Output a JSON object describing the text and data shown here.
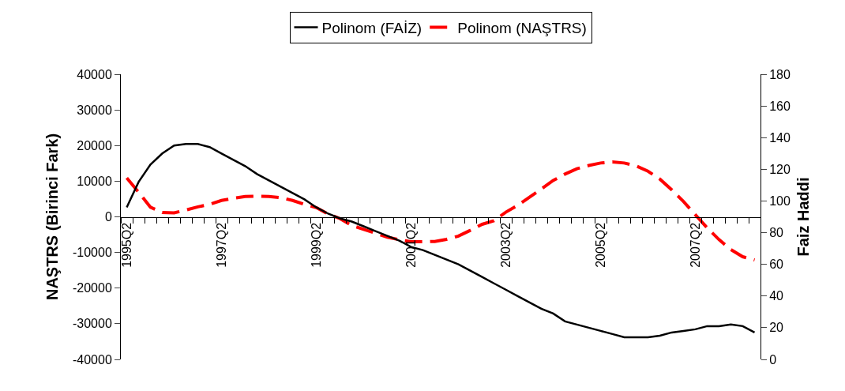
{
  "chart_data": {
    "type": "line",
    "categories": [
      "1995Q2",
      null,
      null,
      null,
      null,
      null,
      null,
      null,
      "1997Q2",
      null,
      null,
      null,
      null,
      null,
      null,
      null,
      "1999Q2",
      null,
      null,
      null,
      null,
      null,
      null,
      null,
      "2001Q2",
      null,
      null,
      null,
      null,
      null,
      null,
      null,
      "2003Q2",
      null,
      null,
      null,
      null,
      null,
      null,
      null,
      "2005Q2",
      null,
      null,
      null,
      null,
      null,
      null,
      null,
      "2007Q2",
      null,
      null,
      null,
      null,
      null
    ],
    "series": [
      {
        "name": "Polinom (FAİZ)",
        "color": "#000000",
        "axis": "y2",
        "line_style": "solid",
        "values": [
          96,
          112,
          123,
          130,
          135,
          136,
          136,
          134,
          130,
          126,
          122,
          117,
          113,
          109,
          105,
          101,
          96,
          92,
          89,
          87,
          84,
          81,
          78,
          75,
          71,
          69,
          66,
          63,
          60,
          56,
          52,
          48,
          44,
          40,
          36,
          32,
          29,
          24,
          22,
          20,
          18,
          16,
          14,
          14,
          14,
          15,
          17,
          18,
          19,
          21,
          21,
          22,
          21,
          17
        ]
      },
      {
        "name": "Polinom (NAŞTRS)",
        "color": "#ff0000",
        "line_style": "dashed",
        "values": [
          10900,
          6900,
          2700,
          1200,
          1100,
          1900,
          2800,
          3500,
          4600,
          5200,
          5700,
          5800,
          5700,
          5400,
          4600,
          3500,
          2600,
          800,
          -500,
          -2400,
          -3500,
          -4600,
          -5700,
          -6400,
          -7000,
          -7000,
          -6900,
          -6300,
          -5400,
          -3800,
          -2100,
          -1100,
          1300,
          3200,
          5500,
          7800,
          10200,
          12000,
          13500,
          14400,
          15100,
          15400,
          15100,
          14300,
          12800,
          10600,
          7600,
          4300,
          600,
          -3100,
          -6400,
          -9200,
          -11200,
          -12100
        ]
      }
    ],
    "ylabel": "NAŞTRS (Birinci Fark)",
    "y2label": "Faiz Haddi",
    "ylim": [
      -40000,
      40000
    ],
    "yticks": [
      -40000,
      -30000,
      -20000,
      -10000,
      0,
      10000,
      20000,
      30000,
      40000
    ],
    "y2lim": [
      0,
      180
    ],
    "y2ticks": [
      0,
      20,
      40,
      60,
      80,
      100,
      120,
      140,
      160,
      180
    ],
    "legend": "top",
    "marker": "none"
  }
}
